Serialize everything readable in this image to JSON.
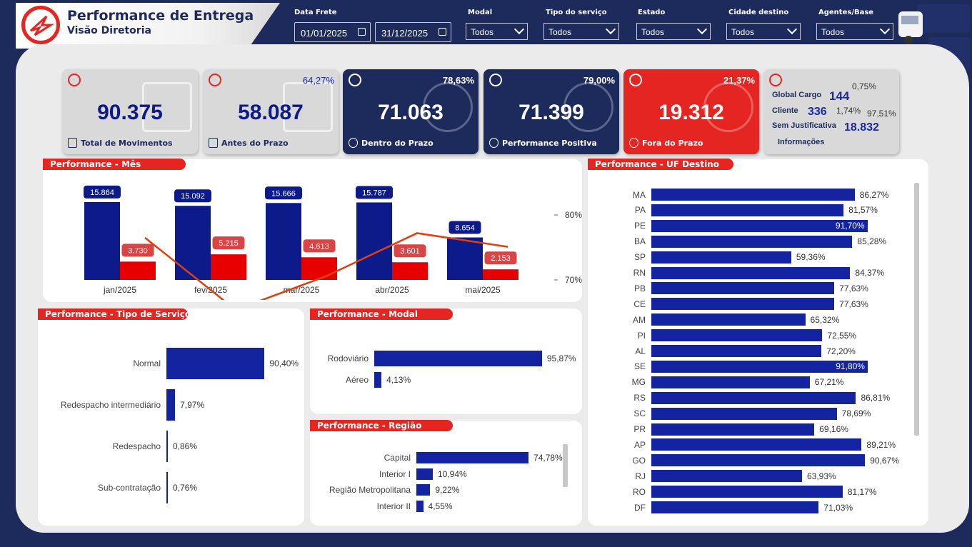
{
  "header": {
    "title": "Performance de Entrega",
    "subtitle": "Visão Diretoria"
  },
  "filters": {
    "data_frete_label": "Data Frete",
    "date_start": "01/01/2025",
    "date_end": "31/12/2025",
    "modal_label": "Modal",
    "modal_value": "Todos",
    "tipo_servico_label": "Tipo do serviço",
    "tipo_servico_value": "Todos",
    "estado_label": "Estado",
    "estado_value": "Todos",
    "cidade_label": "Cidade destino",
    "cidade_value": "Todos",
    "agentes_label": "Agentes/Base",
    "agentes_value": "Todos"
  },
  "kpis": {
    "total": {
      "value": "90.375",
      "caption": "Total de Movimentos"
    },
    "antes": {
      "value": "58.087",
      "pct": "64,27%",
      "caption": "Antes do Prazo"
    },
    "dentro": {
      "value": "71.063",
      "pct": "78,63%",
      "caption": "Dentro do Prazo"
    },
    "positiva": {
      "value": "71.399",
      "pct": "79,00%",
      "caption": "Performance Positiva"
    },
    "fora": {
      "value": "19.312",
      "pct": "21,37%",
      "caption": "Fora do Prazo"
    },
    "info": {
      "caption": "Informações",
      "global_label": "Global Cargo",
      "global_value": "144",
      "global_pct": "0,75%",
      "cliente_label": "Cliente",
      "cliente_value": "336",
      "cliente_pct": "1,74%",
      "sem_label": "Sem Justificativa",
      "sem_value": "18.832",
      "sem_pct": "97,51%"
    }
  },
  "panels": {
    "mes": "Performance - Mês",
    "uf": "Performance - UF Destino",
    "tipo": "Performance - Tipo de Serviço",
    "modal": "Performance - Modal",
    "regiao": "Performance - Região"
  },
  "chart_data": [
    {
      "type": "bar",
      "title": "Performance - Mês",
      "categories": [
        "jan/2025",
        "fev/2025",
        "mar/2025",
        "abr/2025",
        "mai/2025"
      ],
      "series": [
        {
          "values": [
            15864,
            15092,
            15666,
            15787,
            8654
          ],
          "labels": [
            "15.864",
            "15.092",
            "15.666",
            "15.787",
            "8.654"
          ],
          "color": "#0d1a8a"
        },
        {
          "values": [
            3730,
            5215,
            4613,
            3601,
            2153
          ],
          "labels": [
            "3.730",
            "5.215",
            "4.613",
            "3.601",
            "2.153"
          ],
          "color": "#e80000"
        },
        {
          "type": "line",
          "values": [
            76.5,
            65.4,
            70.6,
            77.2,
            75.1
          ],
          "color": "#e04010"
        }
      ],
      "y2_ticks": [
        "80%",
        "70%"
      ],
      "y2lim": [
        70,
        80
      ]
    },
    {
      "type": "bar",
      "title": "Performance - UF Destino",
      "orientation": "horizontal",
      "categories": [
        "MA",
        "PA",
        "PE",
        "BA",
        "SP",
        "RN",
        "PB",
        "CE",
        "AM",
        "PI",
        "AL",
        "SE",
        "MG",
        "RS",
        "SC",
        "PR",
        "AP",
        "GO",
        "RJ",
        "RO",
        "DF"
      ],
      "values": [
        86.27,
        81.57,
        91.7,
        85.28,
        59.36,
        84.37,
        77.63,
        77.63,
        65.32,
        72.55,
        72.2,
        91.8,
        67.21,
        86.81,
        78.69,
        69.16,
        89.21,
        90.67,
        63.93,
        81.17,
        71.03
      ],
      "labels": [
        "86,27%",
        "81,57%",
        "91,70%",
        "85,28%",
        "59,36%",
        "84,37%",
        "77,63%",
        "77,63%",
        "65,32%",
        "72,55%",
        "72,20%",
        "91,80%",
        "67,21%",
        "86,81%",
        "78,69%",
        "69,16%",
        "89,21%",
        "90,67%",
        "63,93%",
        "81,17%",
        "71,03%"
      ]
    },
    {
      "type": "bar",
      "title": "Performance - Tipo de Serviço",
      "orientation": "horizontal",
      "categories": [
        "Normal",
        "Redespacho intermediário",
        "Redespacho",
        "Sub-contratação"
      ],
      "values": [
        90.4,
        7.97,
        0.86,
        0.76
      ],
      "labels": [
        "90,40%",
        "7,97%",
        "0,86%",
        "0,76%"
      ]
    },
    {
      "type": "bar",
      "title": "Performance - Modal",
      "orientation": "horizontal",
      "categories": [
        "Rodoviário",
        "Aéreo"
      ],
      "values": [
        95.87,
        4.13
      ],
      "labels": [
        "95,87%",
        "4,13%"
      ]
    },
    {
      "type": "bar",
      "title": "Performance - Região",
      "orientation": "horizontal",
      "categories": [
        "Capital",
        "Interior I",
        "Região Metropolitana",
        "Interior II"
      ],
      "values": [
        74.78,
        10.94,
        9.22,
        4.55
      ],
      "labels": [
        "74,78%",
        "10,94%",
        "9,22%",
        "4,55%"
      ]
    }
  ],
  "colors": {
    "navy": "#1d2a5c",
    "accent_red": "#e52521",
    "bar_blue": "#1424a0"
  }
}
